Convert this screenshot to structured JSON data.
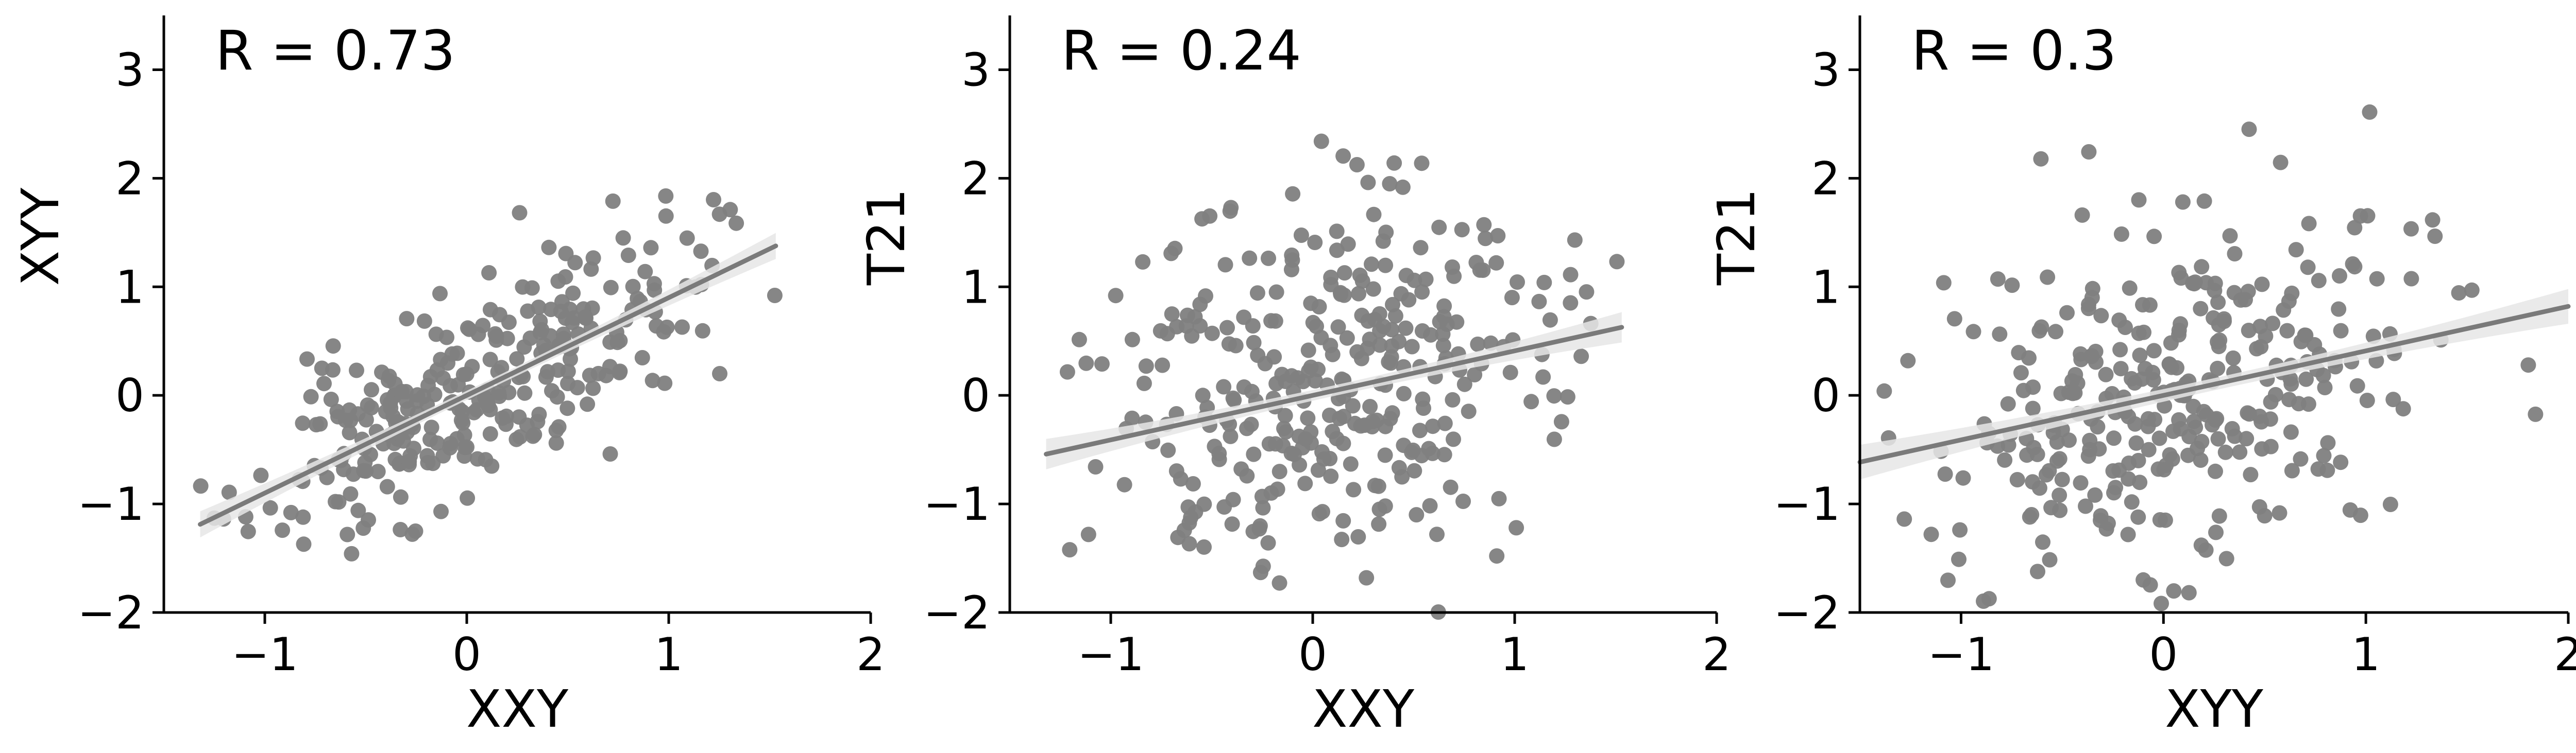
{
  "chart_data": [
    {
      "type": "scatter",
      "annotation": "R = 0.73",
      "xlabel": "XXY",
      "ylabel": "XYY",
      "xlim": [
        -1.5,
        2.0
      ],
      "ylim": [
        -2.0,
        3.5
      ],
      "xticks": [
        -1,
        0,
        1,
        2
      ],
      "xtick_labels": [
        "−1",
        "0",
        "1",
        "2"
      ],
      "yticks": [
        -2,
        -1,
        0,
        1,
        2,
        3
      ],
      "ytick_labels": [
        "−2",
        "−1",
        "0",
        "1",
        "2",
        "3"
      ],
      "grid": false,
      "regression": {
        "x0": -1.32,
        "x1": 1.53,
        "slope": 0.9,
        "intercept": 0.0,
        "band": 0.12
      },
      "points": {
        "n": 300,
        "seed": 11,
        "r": 0.73,
        "xmean": 0.05,
        "xsd": 0.55,
        "xmin": -1.35,
        "xmax": 1.55,
        "ymin": -1.65,
        "ymax": 2.3
      },
      "colors": {
        "point": "#808080",
        "line": "#7a7a7a",
        "band": "#e6e6e6"
      }
    },
    {
      "type": "scatter",
      "annotation": "R = 0.24",
      "xlabel": "XXY",
      "ylabel": "T21",
      "xlim": [
        -1.5,
        2.0
      ],
      "ylim": [
        -2.0,
        3.5
      ],
      "xticks": [
        -1,
        0,
        1,
        2
      ],
      "xtick_labels": [
        "−1",
        "0",
        "1",
        "2"
      ],
      "yticks": [
        -2,
        -1,
        0,
        1,
        2,
        3
      ],
      "ytick_labels": [
        "−2",
        "−1",
        "0",
        "1",
        "2",
        "3"
      ],
      "grid": false,
      "regression": {
        "x0": -1.32,
        "x1": 1.53,
        "slope": 0.41,
        "intercept": 0.0,
        "band": 0.14
      },
      "points": {
        "n": 330,
        "seed": 23,
        "r": 0.24,
        "xmean": 0.05,
        "xsd": 0.55,
        "xmin": -1.35,
        "xmax": 1.55,
        "ymin": -2.0,
        "ymax": 3.05
      },
      "colors": {
        "point": "#808080",
        "line": "#7a7a7a",
        "band": "#e6e6e6"
      }
    },
    {
      "type": "scatter",
      "annotation": "R = 0.3",
      "xlabel": "XYY",
      "ylabel": "T21",
      "xlim": [
        -1.5,
        2.0
      ],
      "ylim": [
        -2.0,
        3.5
      ],
      "xticks": [
        -1,
        0,
        1,
        2
      ],
      "xtick_labels": [
        "−1",
        "0",
        "1",
        "2"
      ],
      "yticks": [
        -2,
        -1,
        0,
        1,
        2,
        3
      ],
      "ytick_labels": [
        "−2",
        "−1",
        "0",
        "1",
        "2",
        "3"
      ],
      "grid": false,
      "regression": {
        "x0": -1.5,
        "x1": 2.0,
        "slope": 0.41,
        "intercept": 0.0,
        "band": 0.16
      },
      "points": {
        "n": 330,
        "seed": 37,
        "r": 0.3,
        "xmean": 0.1,
        "xsd": 0.6,
        "xmin": -1.5,
        "xmax": 2.0,
        "ymin": -2.0,
        "ymax": 3.05
      },
      "colors": {
        "point": "#808080",
        "line": "#7a7a7a",
        "band": "#e6e6e6"
      }
    }
  ]
}
